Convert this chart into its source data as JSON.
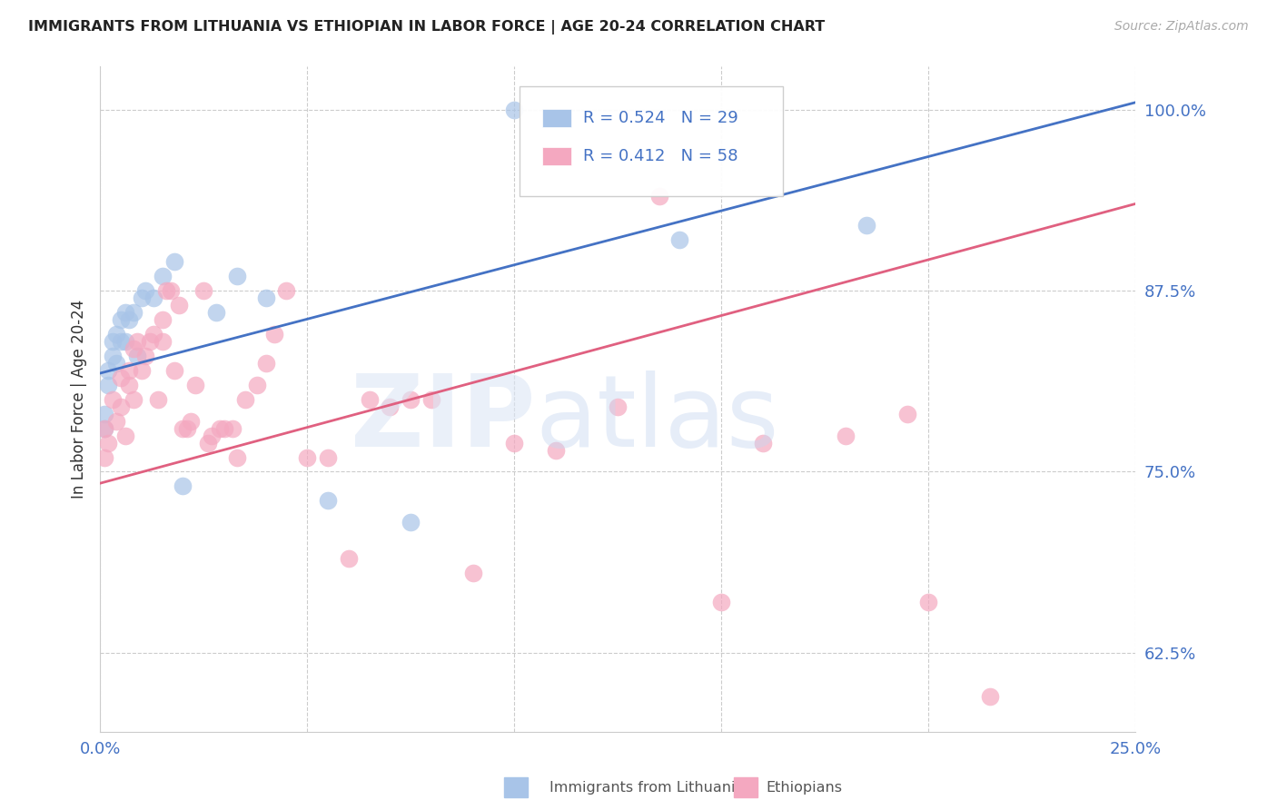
{
  "title": "IMMIGRANTS FROM LITHUANIA VS ETHIOPIAN IN LABOR FORCE | AGE 20-24 CORRELATION CHART",
  "source": "Source: ZipAtlas.com",
  "ylabel": "In Labor Force | Age 20-24",
  "xlim": [
    0.0,
    0.25
  ],
  "ylim": [
    0.57,
    1.03
  ],
  "yticks": [
    0.625,
    0.75,
    0.875,
    1.0
  ],
  "ytick_labels": [
    "62.5%",
    "75.0%",
    "87.5%",
    "100.0%"
  ],
  "xticks": [
    0.0,
    0.05,
    0.1,
    0.15,
    0.2,
    0.25
  ],
  "xtick_labels": [
    "0.0%",
    "",
    "",
    "",
    "",
    "25.0%"
  ],
  "r_blue": 0.524,
  "n_blue": 29,
  "r_pink": 0.412,
  "n_pink": 58,
  "blue_color": "#a8c4e8",
  "pink_color": "#f4a8c0",
  "blue_line_color": "#4472c4",
  "pink_line_color": "#e06080",
  "legend_r_color": "#4472c4",
  "background_color": "#ffffff",
  "blue_line_x0": 0.0,
  "blue_line_y0": 0.818,
  "blue_line_x1": 0.25,
  "blue_line_y1": 1.005,
  "pink_line_x0": 0.0,
  "pink_line_y0": 0.742,
  "pink_line_x1": 0.25,
  "pink_line_y1": 0.935,
  "blue_x": [
    0.001,
    0.001,
    0.002,
    0.002,
    0.003,
    0.003,
    0.004,
    0.004,
    0.005,
    0.005,
    0.006,
    0.006,
    0.007,
    0.008,
    0.009,
    0.01,
    0.011,
    0.013,
    0.015,
    0.018,
    0.02,
    0.028,
    0.033,
    0.04,
    0.055,
    0.075,
    0.1,
    0.14,
    0.185
  ],
  "blue_y": [
    0.78,
    0.79,
    0.82,
    0.81,
    0.83,
    0.84,
    0.825,
    0.845,
    0.84,
    0.855,
    0.84,
    0.86,
    0.855,
    0.86,
    0.83,
    0.87,
    0.875,
    0.87,
    0.885,
    0.895,
    0.74,
    0.86,
    0.885,
    0.87,
    0.73,
    0.715,
    1.0,
    0.91,
    0.92
  ],
  "pink_x": [
    0.001,
    0.001,
    0.002,
    0.003,
    0.004,
    0.005,
    0.005,
    0.006,
    0.007,
    0.007,
    0.008,
    0.008,
    0.009,
    0.01,
    0.011,
    0.012,
    0.013,
    0.014,
    0.015,
    0.015,
    0.016,
    0.017,
    0.018,
    0.019,
    0.02,
    0.021,
    0.022,
    0.023,
    0.025,
    0.026,
    0.027,
    0.029,
    0.03,
    0.032,
    0.033,
    0.035,
    0.038,
    0.04,
    0.042,
    0.045,
    0.05,
    0.055,
    0.06,
    0.065,
    0.07,
    0.075,
    0.08,
    0.09,
    0.1,
    0.11,
    0.125,
    0.135,
    0.15,
    0.16,
    0.18,
    0.195,
    0.2,
    0.215
  ],
  "pink_y": [
    0.76,
    0.78,
    0.77,
    0.8,
    0.785,
    0.795,
    0.815,
    0.775,
    0.81,
    0.82,
    0.835,
    0.8,
    0.84,
    0.82,
    0.83,
    0.84,
    0.845,
    0.8,
    0.84,
    0.855,
    0.875,
    0.875,
    0.82,
    0.865,
    0.78,
    0.78,
    0.785,
    0.81,
    0.875,
    0.77,
    0.775,
    0.78,
    0.78,
    0.78,
    0.76,
    0.8,
    0.81,
    0.825,
    0.845,
    0.875,
    0.76,
    0.76,
    0.69,
    0.8,
    0.795,
    0.8,
    0.8,
    0.68,
    0.77,
    0.765,
    0.795,
    0.94,
    0.66,
    0.77,
    0.775,
    0.79,
    0.66,
    0.595
  ]
}
